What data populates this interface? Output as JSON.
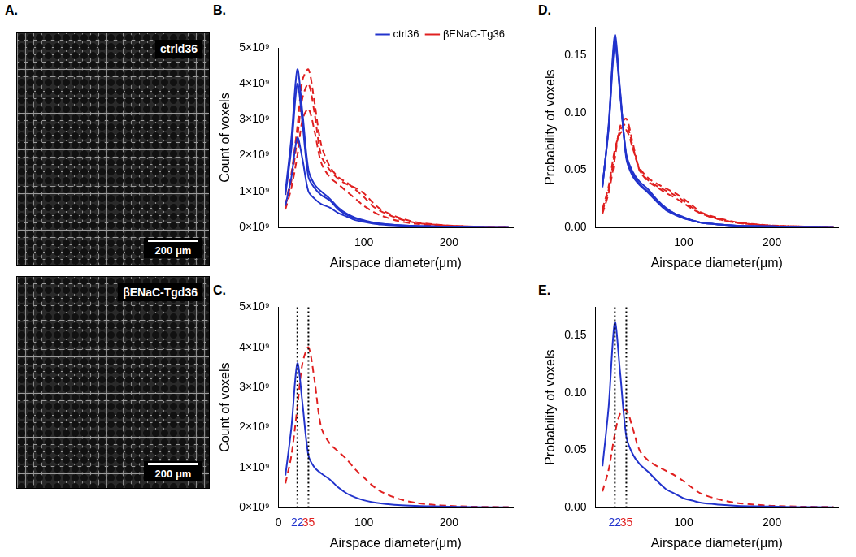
{
  "images": {
    "panel": "A.",
    "items": [
      {
        "label": "ctrld36",
        "scale_bar": "200 μm"
      },
      {
        "label": "βENaC-Tgd36",
        "scale_bar": "200 μm"
      }
    ]
  },
  "chart_data": [
    {
      "panel": "B.",
      "type": "line",
      "x_label": "Airspace diameter(μm)",
      "y_label": "Count of voxels",
      "x": [
        8,
        15,
        22,
        28,
        35,
        42,
        50,
        60,
        70,
        80,
        90,
        100,
        110,
        120,
        140,
        160,
        180,
        200,
        230,
        270
      ],
      "series": [
        {
          "name": "ctrl36",
          "color": "#2233cc",
          "line_style": "solid",
          "values": [
            1000000000.0,
            2500000000.0,
            4400000000.0,
            3200000000.0,
            1600000000.0,
            1200000000.0,
            1000000000.0,
            800000000.0,
            550000000.0,
            380000000.0,
            270000000.0,
            200000000.0,
            140000000.0,
            100000000.0,
            60000000.0,
            40000000.0,
            30000000.0,
            20000000.0,
            10000000.0,
            5000000.0
          ]
        },
        {
          "name": "ctrl36",
          "color": "#2233cc",
          "line_style": "solid",
          "values": [
            900000000.0,
            2200000000.0,
            4000000000.0,
            2900000000.0,
            1400000000.0,
            1100000000.0,
            900000000.0,
            750000000.0,
            500000000.0,
            350000000.0,
            250000000.0,
            180000000.0,
            130000000.0,
            100000000.0,
            60000000.0,
            40000000.0,
            30000000.0,
            20000000.0,
            10000000.0,
            5000000.0
          ]
        },
        {
          "name": "ctrl36",
          "color": "#2233cc",
          "line_style": "solid",
          "values": [
            600000000.0,
            1400000000.0,
            2500000000.0,
            1900000000.0,
            1000000000.0,
            800000000.0,
            650000000.0,
            550000000.0,
            400000000.0,
            300000000.0,
            200000000.0,
            150000000.0,
            110000000.0,
            80000000.0,
            50000000.0,
            30000000.0,
            20000000.0,
            15000000.0,
            10000000.0,
            5000000.0
          ]
        },
        {
          "name": "βENaC-Tg36",
          "color": "#e02020",
          "line_style": "dashed",
          "values": [
            600000000.0,
            1500000000.0,
            2800000000.0,
            4100000000.0,
            4400000000.0,
            3500000000.0,
            2300000000.0,
            1700000000.0,
            1400000000.0,
            1250000000.0,
            1050000000.0,
            850000000.0,
            600000000.0,
            450000000.0,
            250000000.0,
            130000000.0,
            80000000.0,
            50000000.0,
            20000000.0,
            10000000.0
          ]
        },
        {
          "name": "βENaC-Tg36",
          "color": "#e02020",
          "line_style": "dashed",
          "values": [
            600000000.0,
            1300000000.0,
            2500000000.0,
            3600000000.0,
            4000000000.0,
            3200000000.0,
            2000000000.0,
            1600000000.0,
            1350000000.0,
            1200000000.0,
            1100000000.0,
            950000000.0,
            700000000.0,
            500000000.0,
            280000000.0,
            150000000.0,
            90000000.0,
            50000000.0,
            20000000.0,
            10000000.0
          ]
        },
        {
          "name": "βENaC-Tg36",
          "color": "#e02020",
          "line_style": "dashed",
          "values": [
            500000000.0,
            1100000000.0,
            2000000000.0,
            3000000000.0,
            3300000000.0,
            2700000000.0,
            1800000000.0,
            1400000000.0,
            1200000000.0,
            1000000000.0,
            800000000.0,
            600000000.0,
            450000000.0,
            330000000.0,
            180000000.0,
            100000000.0,
            60000000.0,
            40000000.0,
            20000000.0,
            10000000.0
          ]
        }
      ],
      "xlim": [
        0,
        275
      ],
      "xticks": [
        100,
        200
      ],
      "ylim": [
        0,
        5000000000.0
      ],
      "yticks": [
        {
          "value": 0,
          "label": "0×10⁹"
        },
        {
          "value": 1000000000.0,
          "label": "1×10⁹"
        },
        {
          "value": 2000000000.0,
          "label": "2×10⁹"
        },
        {
          "value": 3000000000.0,
          "label": "3×10⁹"
        },
        {
          "value": 4000000000.0,
          "label": "4×10⁹"
        },
        {
          "value": 5000000000.0,
          "label": "5×10⁹"
        }
      ],
      "grid": false,
      "legend": "top-right"
    },
    {
      "panel": "C.",
      "type": "line",
      "x_label": "Airspace diameter(μm)",
      "y_label": "Count of voxels",
      "x": [
        8,
        15,
        22,
        28,
        35,
        42,
        50,
        60,
        70,
        80,
        90,
        100,
        110,
        120,
        140,
        160,
        180,
        200,
        230,
        270
      ],
      "series": [
        {
          "name": "ctrl36",
          "color": "#2233cc",
          "line_style": "solid",
          "values": [
            800000000.0,
            2000000000.0,
            3600000000.0,
            2600000000.0,
            1300000000.0,
            1000000000.0,
            850000000.0,
            700000000.0,
            500000000.0,
            350000000.0,
            250000000.0,
            180000000.0,
            130000000.0,
            100000000.0,
            60000000.0,
            40000000.0,
            30000000.0,
            20000000.0,
            10000000.0,
            5000000.0
          ]
        },
        {
          "name": "βENaC-Tg36",
          "color": "#e02020",
          "line_style": "dashed",
          "values": [
            600000000.0,
            1300000000.0,
            2500000000.0,
            3600000000.0,
            4000000000.0,
            3200000000.0,
            2000000000.0,
            1600000000.0,
            1400000000.0,
            1200000000.0,
            950000000.0,
            750000000.0,
            550000000.0,
            400000000.0,
            220000000.0,
            120000000.0,
            70000000.0,
            40000000.0,
            20000000.0,
            10000000.0
          ]
        }
      ],
      "annotations": [
        {
          "x": 22,
          "color": "#2233cc",
          "line_style": "dotted"
        },
        {
          "x": 35,
          "color": "#e02020",
          "line_style": "dotted"
        }
      ],
      "xlim": [
        0,
        275
      ],
      "xticks": [
        0,
        22,
        35,
        100,
        200
      ],
      "ylim": [
        0,
        5000000000.0
      ],
      "yticks": [
        {
          "value": 0,
          "label": "0×10⁹"
        },
        {
          "value": 1000000000.0,
          "label": "1×10⁹"
        },
        {
          "value": 2000000000.0,
          "label": "2×10⁹"
        },
        {
          "value": 3000000000.0,
          "label": "3×10⁹"
        },
        {
          "value": 4000000000.0,
          "label": "4×10⁹"
        },
        {
          "value": 5000000000.0,
          "label": "5×10⁹"
        }
      ],
      "grid": false
    },
    {
      "panel": "D.",
      "type": "line",
      "x_label": "Airspace diameter(μm)",
      "y_label": "Probability of voxels",
      "x": [
        8,
        15,
        22,
        28,
        35,
        42,
        50,
        60,
        70,
        80,
        90,
        100,
        110,
        120,
        140,
        160,
        180,
        200,
        230,
        270
      ],
      "series": [
        {
          "name": "ctrl36",
          "color": "#2233cc",
          "line_style": "solid",
          "values": [
            0.035,
            0.09,
            0.168,
            0.12,
            0.06,
            0.045,
            0.037,
            0.03,
            0.022,
            0.015,
            0.011,
            0.008,
            0.006,
            0.004,
            0.0025,
            0.0015,
            0.001,
            0.0008,
            0.0004,
            0.0002
          ]
        },
        {
          "name": "ctrl36",
          "color": "#2233cc",
          "line_style": "solid",
          "values": [
            0.036,
            0.088,
            0.164,
            0.118,
            0.062,
            0.047,
            0.038,
            0.031,
            0.023,
            0.016,
            0.012,
            0.008,
            0.006,
            0.004,
            0.0025,
            0.0015,
            0.001,
            0.0008,
            0.0004,
            0.0002
          ]
        },
        {
          "name": "ctrl36",
          "color": "#2233cc",
          "line_style": "solid",
          "values": [
            0.037,
            0.086,
            0.16,
            0.116,
            0.064,
            0.049,
            0.04,
            0.033,
            0.024,
            0.017,
            0.012,
            0.009,
            0.006,
            0.004,
            0.0025,
            0.0015,
            0.001,
            0.0008,
            0.0004,
            0.0002
          ]
        },
        {
          "name": "βENaC-Tg36",
          "color": "#e02020",
          "line_style": "dashed",
          "values": [
            0.012,
            0.03,
            0.06,
            0.088,
            0.095,
            0.075,
            0.05,
            0.04,
            0.035,
            0.03,
            0.026,
            0.021,
            0.016,
            0.012,
            0.007,
            0.004,
            0.0025,
            0.0015,
            0.0008,
            0.0004
          ]
        },
        {
          "name": "βENaC-Tg36",
          "color": "#e02020",
          "line_style": "dashed",
          "values": [
            0.014,
            0.033,
            0.065,
            0.085,
            0.09,
            0.072,
            0.05,
            0.041,
            0.036,
            0.032,
            0.028,
            0.023,
            0.017,
            0.012,
            0.007,
            0.004,
            0.0025,
            0.0015,
            0.0008,
            0.0004
          ]
        },
        {
          "name": "βENaC-Tg36",
          "color": "#e02020",
          "line_style": "dashed",
          "values": [
            0.016,
            0.036,
            0.068,
            0.082,
            0.085,
            0.07,
            0.052,
            0.043,
            0.038,
            0.034,
            0.03,
            0.025,
            0.019,
            0.013,
            0.008,
            0.0045,
            0.0028,
            0.0016,
            0.0008,
            0.0004
          ]
        }
      ],
      "xlim": [
        0,
        275
      ],
      "xticks": [
        100,
        200
      ],
      "ylim": [
        0,
        0.175
      ],
      "yticks": [
        {
          "value": 0,
          "label": "0.00"
        },
        {
          "value": 0.05,
          "label": "0.05"
        },
        {
          "value": 0.1,
          "label": "0.10"
        },
        {
          "value": 0.15,
          "label": "0.15"
        }
      ],
      "grid": false
    },
    {
      "panel": "E.",
      "type": "line",
      "x_label": "Airspace diameter(μm)",
      "y_label": "Probability of voxels",
      "x": [
        8,
        15,
        22,
        28,
        35,
        42,
        50,
        60,
        70,
        80,
        90,
        100,
        110,
        120,
        140,
        160,
        180,
        200,
        230,
        270
      ],
      "series": [
        {
          "name": "ctrl36",
          "color": "#2233cc",
          "line_style": "solid",
          "values": [
            0.036,
            0.088,
            0.162,
            0.118,
            0.062,
            0.047,
            0.038,
            0.031,
            0.023,
            0.016,
            0.012,
            0.008,
            0.006,
            0.004,
            0.0025,
            0.0015,
            0.001,
            0.0008,
            0.0004,
            0.0002
          ]
        },
        {
          "name": "βENaC-Tg36",
          "color": "#e02020",
          "line_style": "dashed",
          "values": [
            0.014,
            0.033,
            0.064,
            0.082,
            0.085,
            0.07,
            0.05,
            0.041,
            0.036,
            0.032,
            0.028,
            0.023,
            0.017,
            0.012,
            0.007,
            0.004,
            0.0025,
            0.0015,
            0.0008,
            0.0004
          ]
        }
      ],
      "annotations": [
        {
          "x": 22,
          "color": "#2233cc",
          "line_style": "dotted"
        },
        {
          "x": 35,
          "color": "#e02020",
          "line_style": "dotted"
        }
      ],
      "xlim": [
        0,
        275
      ],
      "xticks": [
        22,
        35,
        100,
        200
      ],
      "ylim": [
        0,
        0.175
      ],
      "yticks": [
        {
          "value": 0,
          "label": "0.00"
        },
        {
          "value": 0.05,
          "label": "0.05"
        },
        {
          "value": 0.1,
          "label": "0.10"
        },
        {
          "value": 0.15,
          "label": "0.15"
        }
      ],
      "grid": false
    }
  ]
}
